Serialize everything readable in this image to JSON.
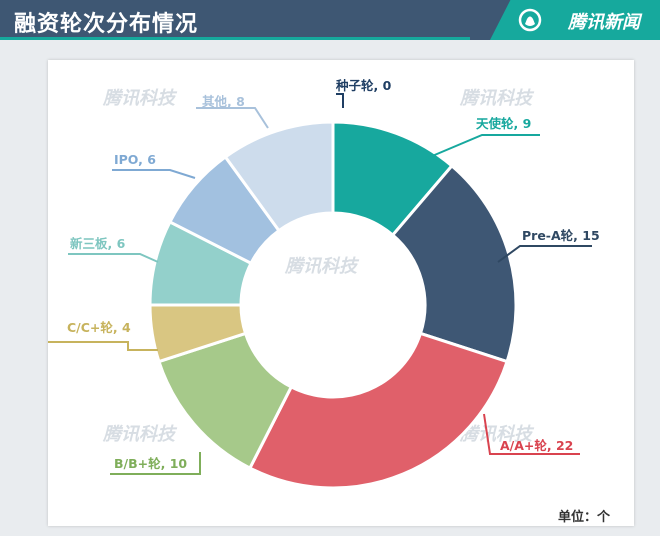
{
  "header": {
    "title": "融资轮次分布情况",
    "brand": "腾讯新闻"
  },
  "watermark": "腾讯科技",
  "unit_label": "单位：个",
  "chart_data": {
    "type": "pie",
    "donut": true,
    "title": "融资轮次分布情况",
    "unit": "个",
    "slices": [
      {
        "name": "种子轮",
        "value": 0,
        "color": "#1f4e79"
      },
      {
        "name": "天使轮",
        "value": 9,
        "color": "#17a89e"
      },
      {
        "name": "Pre-A轮",
        "value": 15,
        "color": "#3e5774"
      },
      {
        "name": "A/A+轮",
        "value": 22,
        "color": "#e0606a"
      },
      {
        "name": "B/B+轮",
        "value": 10,
        "color": "#a6c98a"
      },
      {
        "name": "C/C+轮",
        "value": 4,
        "color": "#d9c682"
      },
      {
        "name": "新三板",
        "value": 6,
        "color": "#93d0cb"
      },
      {
        "name": "IPO",
        "value": 6,
        "color": "#a2c1e0"
      },
      {
        "name": "其他",
        "value": 8,
        "color": "#cddcec"
      }
    ],
    "label_colors": {
      "种子轮": "#1f3e63",
      "天使轮": "#17a89e",
      "Pre-A轮": "#2f4862",
      "A/A+轮": "#d9434f",
      "B/B+轮": "#7fae5a",
      "C/C+轮": "#c7b35d",
      "新三板": "#7ec6c0",
      "IPO": "#7fa9d3",
      "其他": "#a8c1db"
    }
  }
}
